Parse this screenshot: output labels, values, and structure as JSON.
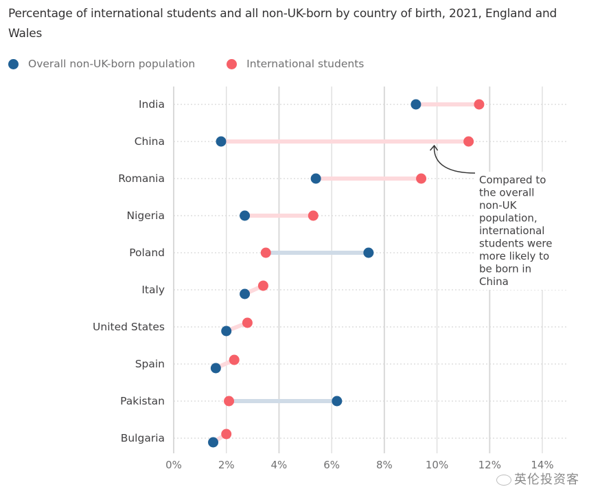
{
  "chart_data": {
    "type": "dumbbell",
    "title": "Percentage of international students and all non-UK-born by country of birth, 2021, England and Wales",
    "xlabel": "",
    "ylabel": "",
    "xlim": [
      0,
      14
    ],
    "x_ticks": [
      0,
      2,
      4,
      6,
      8,
      10,
      12,
      14
    ],
    "x_tick_labels": [
      "0%",
      "2%",
      "4%",
      "6%",
      "8%",
      "10%",
      "12%",
      "14%"
    ],
    "grid": true,
    "legend_position": "top-left",
    "categories": [
      "India",
      "China",
      "Romania",
      "Nigeria",
      "Poland",
      "Italy",
      "United States",
      "Spain",
      "Pakistan",
      "Bulgaria"
    ],
    "series": [
      {
        "name": "Overall non-UK-born population",
        "color": "#206095",
        "values": [
          9.2,
          1.8,
          5.4,
          2.7,
          7.4,
          2.7,
          2.0,
          1.6,
          6.2,
          1.5
        ]
      },
      {
        "name": "International students",
        "color": "#f66068",
        "values": [
          11.6,
          11.2,
          9.4,
          5.3,
          3.5,
          3.4,
          2.8,
          2.3,
          2.1,
          2.0
        ]
      }
    ],
    "connector_colors": {
      "students_higher": "#fdd9dc",
      "population_higher": "#cfdbe7"
    },
    "annotation": {
      "text": "Compared to the overall non-UK population, international students were more likely to be born in China",
      "lines": [
        "Compared to",
        "the overall",
        "non-UK",
        "population,",
        "international",
        "students were",
        "more likely to",
        "be born in",
        "China"
      ],
      "target_category": "China",
      "target_x": 10
    }
  },
  "watermark": {
    "text": "英伦投资客",
    "icon": "wechat-icon"
  }
}
